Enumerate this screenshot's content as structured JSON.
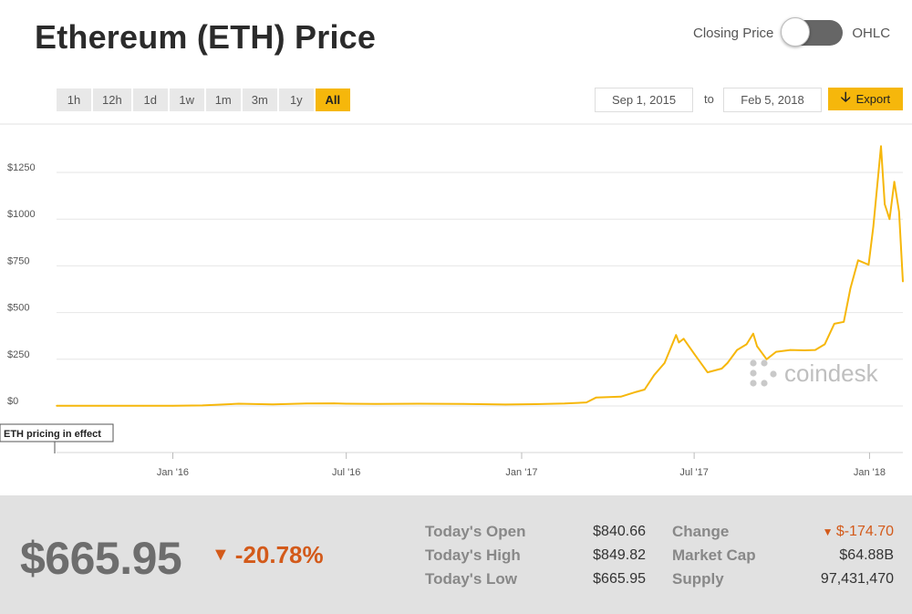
{
  "header": {
    "title": "Ethereum (ETH) Price",
    "toggle_left": "Closing Price",
    "toggle_right": "OHLC"
  },
  "ranges": [
    "1h",
    "12h",
    "1d",
    "1w",
    "1m",
    "3m",
    "1y",
    "All"
  ],
  "active_range": "All",
  "dates": {
    "from": "Sep 1, 2015",
    "sep": "to",
    "to": "Feb 5, 2018"
  },
  "export_label": "Export",
  "watermark": "coindesk",
  "annotation": "ETH pricing in effect",
  "colors": {
    "line": "#f6b70b",
    "accent": "#f6b70b",
    "negative": "#d35a1a"
  },
  "chart_data": {
    "type": "line",
    "title": "",
    "xlabel": "",
    "ylabel": "",
    "ylim": [
      0,
      1250
    ],
    "y_ticks": [
      "$0",
      "$250",
      "$500",
      "$750",
      "$1000",
      "$1250"
    ],
    "y_tick_values": [
      0,
      250,
      500,
      750,
      1000,
      1250
    ],
    "x_ticks": [
      "Jan '16",
      "Jul '16",
      "Jan '17",
      "Jul '17",
      "Jan '18"
    ],
    "x_tick_values": [
      "2016-01-01",
      "2016-07-01",
      "2017-01-01",
      "2017-07-01",
      "2018-01-01"
    ],
    "xlim": [
      "2015-09-01",
      "2018-02-05"
    ],
    "grid": true,
    "series": [
      {
        "points": [
          [
            "2015-09-01",
            1
          ],
          [
            "2015-10-15",
            1
          ],
          [
            "2015-12-01",
            1
          ],
          [
            "2016-01-01",
            1
          ],
          [
            "2016-02-01",
            3
          ],
          [
            "2016-03-10",
            12
          ],
          [
            "2016-04-15",
            9
          ],
          [
            "2016-05-20",
            13
          ],
          [
            "2016-06-18",
            14
          ],
          [
            "2016-07-01",
            12
          ],
          [
            "2016-08-01",
            11
          ],
          [
            "2016-09-15",
            12
          ],
          [
            "2016-11-01",
            11
          ],
          [
            "2016-12-15",
            8
          ],
          [
            "2017-01-15",
            10
          ],
          [
            "2017-02-15",
            13
          ],
          [
            "2017-03-10",
            19
          ],
          [
            "2017-03-20",
            45
          ],
          [
            "2017-04-15",
            50
          ],
          [
            "2017-05-01",
            75
          ],
          [
            "2017-05-10",
            88
          ],
          [
            "2017-05-20",
            165
          ],
          [
            "2017-05-31",
            230
          ],
          [
            "2017-06-12",
            380
          ],
          [
            "2017-06-15",
            340
          ],
          [
            "2017-06-20",
            360
          ],
          [
            "2017-07-01",
            280
          ],
          [
            "2017-07-15",
            180
          ],
          [
            "2017-07-30",
            200
          ],
          [
            "2017-08-05",
            230
          ],
          [
            "2017-08-15",
            300
          ],
          [
            "2017-08-25",
            330
          ],
          [
            "2017-09-01",
            387
          ],
          [
            "2017-09-05",
            320
          ],
          [
            "2017-09-15",
            250
          ],
          [
            "2017-09-25",
            290
          ],
          [
            "2017-10-10",
            300
          ],
          [
            "2017-10-25",
            298
          ],
          [
            "2017-11-05",
            300
          ],
          [
            "2017-11-15",
            330
          ],
          [
            "2017-11-25",
            440
          ],
          [
            "2017-12-05",
            450
          ],
          [
            "2017-12-12",
            630
          ],
          [
            "2017-12-20",
            780
          ],
          [
            "2017-12-31",
            756
          ],
          [
            "2018-01-05",
            960
          ],
          [
            "2018-01-13",
            1390
          ],
          [
            "2018-01-17",
            1080
          ],
          [
            "2018-01-22",
            1000
          ],
          [
            "2018-01-27",
            1200
          ],
          [
            "2018-02-01",
            1040
          ],
          [
            "2018-02-05",
            666
          ]
        ]
      }
    ]
  },
  "footer": {
    "price": "$665.95",
    "change_pct": "-20.78%",
    "stats_left": [
      {
        "label": "Today's Open",
        "value": "$840.66"
      },
      {
        "label": "Today's High",
        "value": "$849.82"
      },
      {
        "label": "Today's Low",
        "value": "$665.95"
      }
    ],
    "stats_right": [
      {
        "label": "Change",
        "value": "$-174.70"
      },
      {
        "label": "Market Cap",
        "value": "$64.88B"
      },
      {
        "label": "Supply",
        "value": "97,431,470"
      }
    ]
  }
}
